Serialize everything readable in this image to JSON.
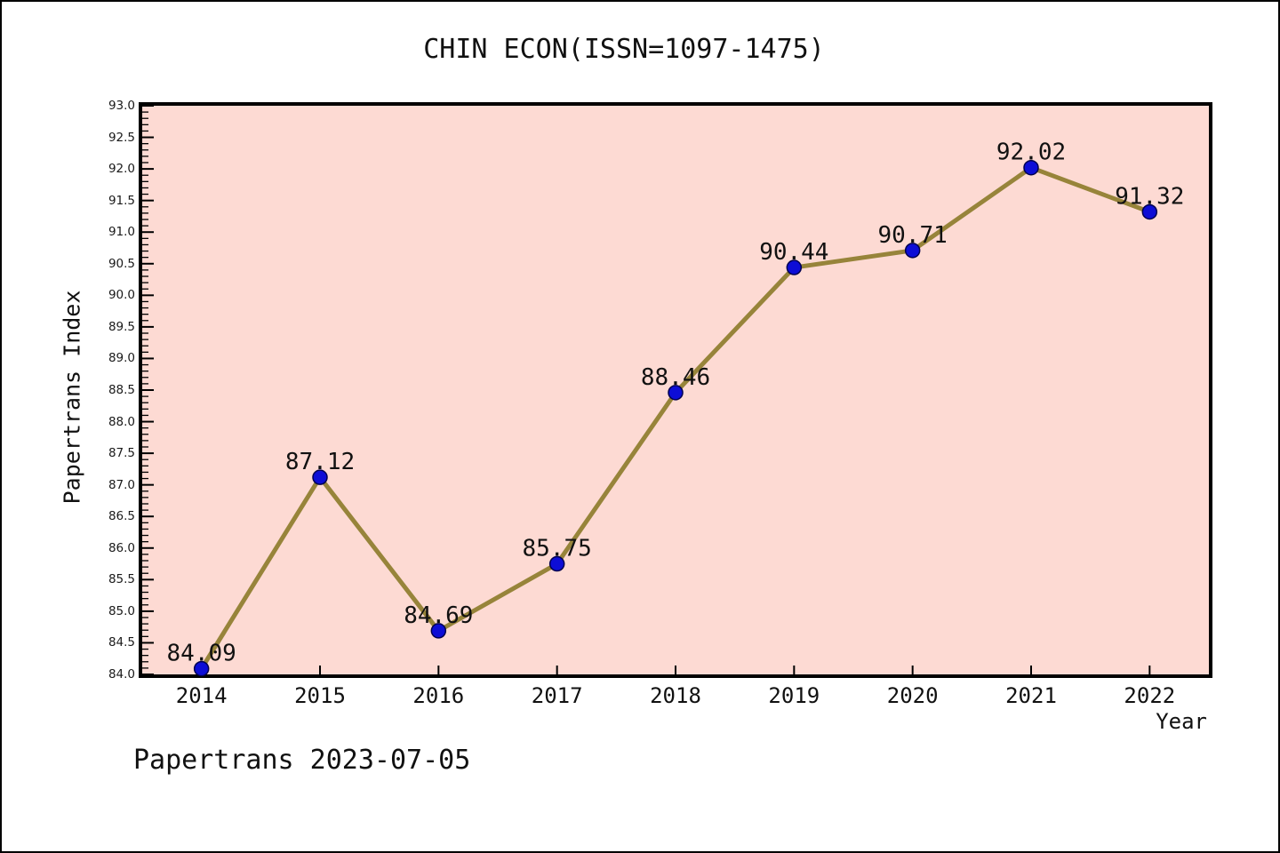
{
  "chart_data": {
    "type": "line",
    "title": "CHIN ECON(ISSN=1097-1475)",
    "xlabel": "Year",
    "ylabel": "Papertrans Index",
    "x": [
      2014,
      2015,
      2016,
      2017,
      2018,
      2019,
      2020,
      2021,
      2022
    ],
    "series": [
      {
        "name": "Papertrans Index",
        "values": [
          84.09,
          87.12,
          84.69,
          85.75,
          88.46,
          90.44,
          90.71,
          92.02,
          91.32
        ]
      }
    ],
    "point_labels": [
      "84.09",
      "87.12",
      "84.69",
      "85.75",
      "88.46",
      "90.44",
      "90.71",
      "92.02",
      "91.32"
    ],
    "xlim": [
      2013.5,
      2022.5
    ],
    "ylim": [
      84.0,
      93.0
    ],
    "y_major_step": 0.5,
    "y_minor_step": 0.1,
    "grid": false,
    "legend": null,
    "colors": {
      "plot_bg": "#FDDAD3",
      "line": "#97843A",
      "marker_fill": "#0D0DD6",
      "marker_edge": "#000050",
      "spine": "#000000",
      "text": "#111111"
    }
  },
  "footer": {
    "label": "Papertrans 2023-07-05"
  }
}
